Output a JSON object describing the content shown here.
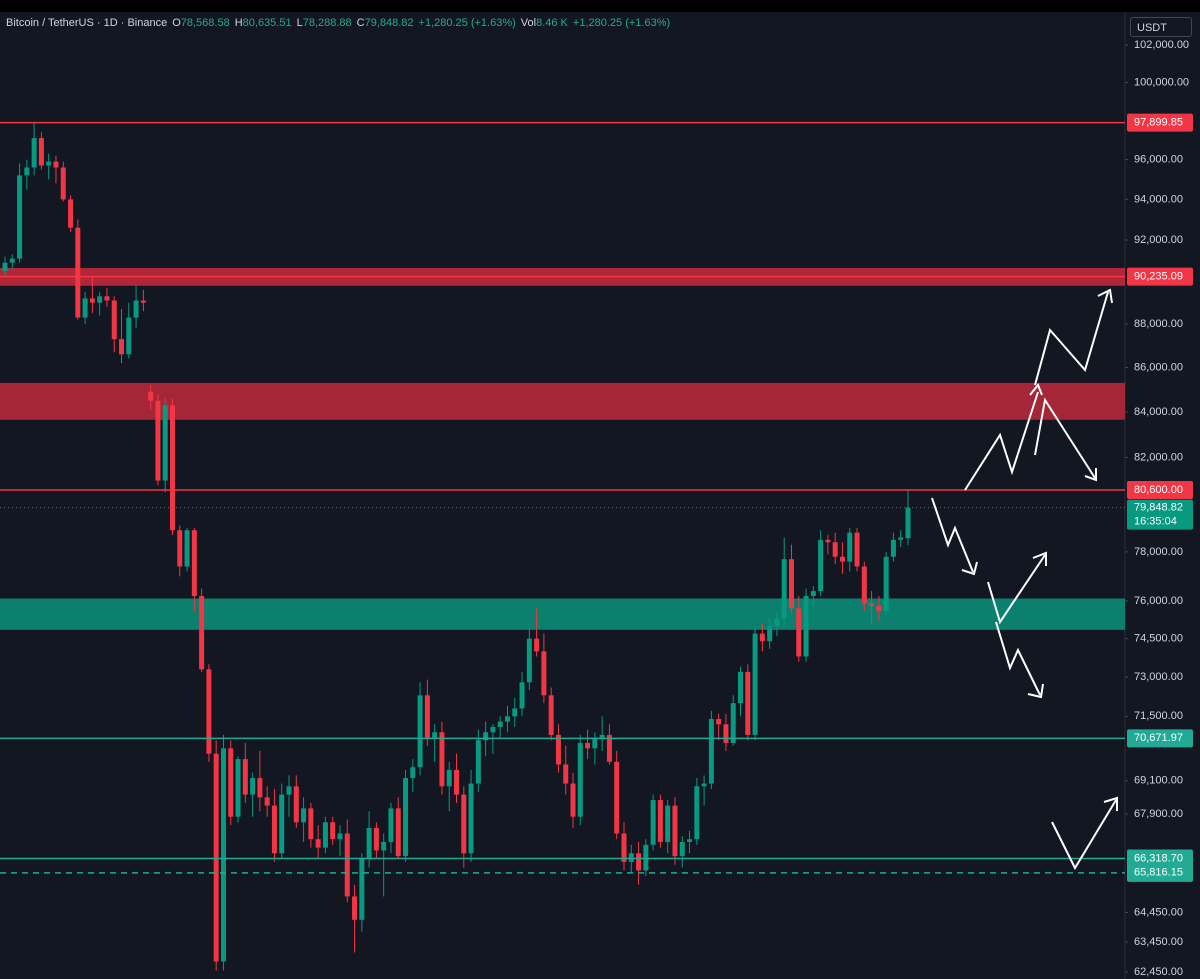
{
  "chart_data": {
    "type": "candlestick",
    "title": "Bitcoin / TetherUS · 1D · Binance",
    "legend": [
      {
        "key": "O",
        "value": "78,568.58"
      },
      {
        "key": "H",
        "value": "80,635.51"
      },
      {
        "key": "L",
        "value": "78,288.88"
      },
      {
        "key": "C",
        "value": "79,848.82"
      },
      {
        "key": "",
        "value": "+1,280.25 (+1.63%)"
      },
      {
        "key": "Vol",
        "value": "8.46 K"
      },
      {
        "key": "",
        "value": "+1,280.25 (+1.63%)"
      }
    ],
    "currency": "USDT",
    "log_scale": true,
    "up_color": "#089981",
    "down_color": "#f23645",
    "ylim": [
      62220,
      103800
    ],
    "yticks": [
      {
        "value": 102000,
        "label": "102,000.00"
      },
      {
        "value": 100000,
        "label": "100,000.00"
      },
      {
        "value": 96000,
        "label": "96,000.00"
      },
      {
        "value": 94000,
        "label": "94,000.00"
      },
      {
        "value": 92000,
        "label": "92,000.00"
      },
      {
        "value": 88000,
        "label": "88,000.00"
      },
      {
        "value": 86000,
        "label": "86,000.00"
      },
      {
        "value": 84000,
        "label": "84,000.00"
      },
      {
        "value": 82000,
        "label": "82,000.00"
      },
      {
        "value": 78000,
        "label": "78,000.00"
      },
      {
        "value": 76000,
        "label": "76,000.00"
      },
      {
        "value": 74500,
        "label": "74,500.00"
      },
      {
        "value": 73000,
        "label": "73,000.00"
      },
      {
        "value": 71500,
        "label": "71,500.00"
      },
      {
        "value": 69100,
        "label": "69,100.00"
      },
      {
        "value": 67900,
        "label": "67,900.00"
      },
      {
        "value": 64450,
        "label": "64,450.00"
      },
      {
        "value": 63450,
        "label": "63,450.00"
      },
      {
        "value": 62450,
        "label": "62,450.00"
      }
    ],
    "zones": [
      {
        "low": 89800,
        "high": 90650,
        "color": "#c0283c"
      },
      {
        "low": 83650,
        "high": 85300,
        "color": "#b2283a"
      },
      {
        "low": 74850,
        "high": 76100,
        "color": "#0b8a75"
      }
    ],
    "levels": [
      {
        "value": 97899.85,
        "label": "97,899.85",
        "color": "#f23645",
        "dashed": false
      },
      {
        "value": 90235.09,
        "label": "90,235.09",
        "color": "#f23645",
        "dashed": false
      },
      {
        "value": 80600,
        "label": "80,600.00",
        "color": "#f23645",
        "dashed": false
      },
      {
        "value": 70671.97,
        "label": "70,671.97",
        "color": "#22ab94",
        "dashed": false
      },
      {
        "value": 66318.7,
        "label": "66,318.70",
        "color": "#22ab94",
        "dashed": false
      },
      {
        "value": 65816.15,
        "label": "65,816.15",
        "color": "#22ab94",
        "dashed": true
      }
    ],
    "current_price": {
      "value": 79848.82,
      "label": "79,848.82",
      "countdown": "16:35:04"
    },
    "open": [
      90500,
      90900,
      91100,
      95200,
      95600,
      97100,
      95700,
      95900,
      95600,
      94000,
      92600,
      88300,
      89200,
      89000,
      89300,
      89100,
      87300,
      86600,
      88300,
      89100,
      84900,
      84500,
      81000,
      84300,
      78900,
      77400,
      78900,
      76200,
      73300,
      70100,
      62800,
      70300,
      67800,
      69900,
      68600,
      69200,
      68500,
      68200,
      66500,
      68600,
      68900,
      67600,
      68100,
      67000,
      66700,
      67600,
      67000,
      67200,
      65000,
      64200,
      66300,
      67400,
      66600,
      66900,
      68100,
      66400,
      69200,
      69600,
      72300,
      70700,
      70900,
      68900,
      69500,
      68600,
      66500,
      69000,
      70600,
      70900,
      71100,
      71300,
      71500,
      71800,
      72800,
      74500,
      74000,
      72300,
      70800,
      69700,
      69000,
      67800,
      70500,
      70300,
      70700,
      70800,
      69800,
      67200,
      66200,
      66500,
      65900,
      66800,
      68400,
      66900,
      68200,
      66400,
      66900,
      67000,
      68900,
      69000,
      71400,
      71200,
      70500,
      72000,
      73200,
      70800,
      74700,
      74400,
      75000,
      75300,
      77700,
      75700,
      73800,
      76200,
      76400,
      78500,
      78400,
      77800,
      77600,
      78800,
      77400,
      75900,
      75800,
      75600,
      77800,
      78500,
      78568.58
    ],
    "high": [
      91200,
      91300,
      95800,
      96000,
      97900,
      97400,
      96300,
      96200,
      95900,
      94200,
      93000,
      89500,
      90200,
      89500,
      89700,
      89300,
      88700,
      89000,
      89800,
      89600,
      85200,
      84800,
      84600,
      84600,
      79100,
      79000,
      79000,
      76500,
      73500,
      70600,
      70800,
      70600,
      70000,
      70500,
      69400,
      70200,
      68900,
      68800,
      69000,
      69300,
      69300,
      68500,
      68300,
      67500,
      67800,
      67800,
      67500,
      67700,
      65400,
      66500,
      68000,
      67600,
      67200,
      68300,
      68500,
      69500,
      69900,
      72800,
      72900,
      71200,
      71300,
      69800,
      70100,
      68900,
      69500,
      71000,
      71300,
      71200,
      71500,
      71900,
      72200,
      73200,
      74900,
      75700,
      74700,
      72600,
      71200,
      70400,
      69400,
      70800,
      71000,
      70900,
      71500,
      71200,
      70200,
      67600,
      66800,
      66900,
      67000,
      68600,
      68600,
      68400,
      68500,
      67100,
      67300,
      69200,
      69300,
      71700,
      71600,
      71600,
      72300,
      73400,
      73500,
      75000,
      75100,
      75300,
      75500,
      78600,
      78300,
      76200,
      76500,
      76600,
      78900,
      78700,
      78800,
      78400,
      79000,
      79000,
      77600,
      76400,
      76200,
      78000,
      78800,
      78900,
      80635.51
    ],
    "low": [
      90200,
      90600,
      90900,
      94500,
      95200,
      95500,
      95000,
      94800,
      93900,
      92400,
      88200,
      88000,
      88500,
      88400,
      88800,
      86700,
      86200,
      86400,
      87800,
      88600,
      84100,
      80800,
      80500,
      78700,
      77000,
      77200,
      75600,
      73200,
      69800,
      62500,
      62500,
      67500,
      67600,
      68300,
      67800,
      68000,
      67800,
      66200,
      66300,
      67800,
      67400,
      66900,
      66700,
      66300,
      66500,
      66800,
      66400,
      64800,
      63100,
      63800,
      66000,
      66300,
      65000,
      66500,
      66300,
      66200,
      68700,
      69300,
      70400,
      69800,
      68600,
      68000,
      68300,
      66000,
      66200,
      68700,
      70000,
      70100,
      70700,
      70900,
      71100,
      71500,
      72500,
      73800,
      72000,
      70600,
      69400,
      68600,
      67400,
      67500,
      69900,
      69700,
      70200,
      69700,
      67000,
      65900,
      65800,
      65400,
      65700,
      66600,
      66700,
      66500,
      66100,
      66000,
      66500,
      66800,
      68200,
      68800,
      70600,
      70200,
      70400,
      71500,
      70600,
      70600,
      74000,
      74100,
      74600,
      75000,
      75500,
      73600,
      73600,
      75800,
      76200,
      77900,
      77500,
      77100,
      77200,
      77200,
      75600,
      75100,
      75200,
      75400,
      77600,
      78200,
      78288.88
    ],
    "close": [
      90900,
      91100,
      95200,
      95600,
      97100,
      95700,
      95900,
      95600,
      94000,
      92600,
      88300,
      89200,
      89000,
      89300,
      89100,
      87300,
      86600,
      88300,
      89100,
      89000,
      84500,
      81000,
      84300,
      78900,
      77400,
      78900,
      76200,
      73300,
      70100,
      62800,
      70300,
      67800,
      69900,
      68600,
      69200,
      68500,
      68200,
      66500,
      68600,
      68900,
      67600,
      68100,
      67000,
      66700,
      67600,
      67000,
      67200,
      65000,
      64200,
      66300,
      67400,
      66600,
      66900,
      68100,
      66400,
      69200,
      69600,
      72300,
      70700,
      70900,
      68900,
      69500,
      68600,
      66500,
      69000,
      70600,
      70900,
      71100,
      71300,
      71500,
      71800,
      72800,
      74500,
      74000,
      72300,
      70800,
      69700,
      69000,
      67800,
      70500,
      70300,
      70700,
      70800,
      69800,
      67200,
      66200,
      66500,
      65900,
      66800,
      68400,
      66900,
      68200,
      66400,
      66900,
      67000,
      68900,
      69000,
      71400,
      71200,
      70500,
      72000,
      73200,
      70800,
      74700,
      74400,
      75000,
      75300,
      77700,
      75700,
      73800,
      76200,
      76400,
      78500,
      78400,
      77800,
      77600,
      78800,
      77400,
      75900,
      75800,
      75600,
      77800,
      78500,
      78600,
      79848.82
    ]
  }
}
